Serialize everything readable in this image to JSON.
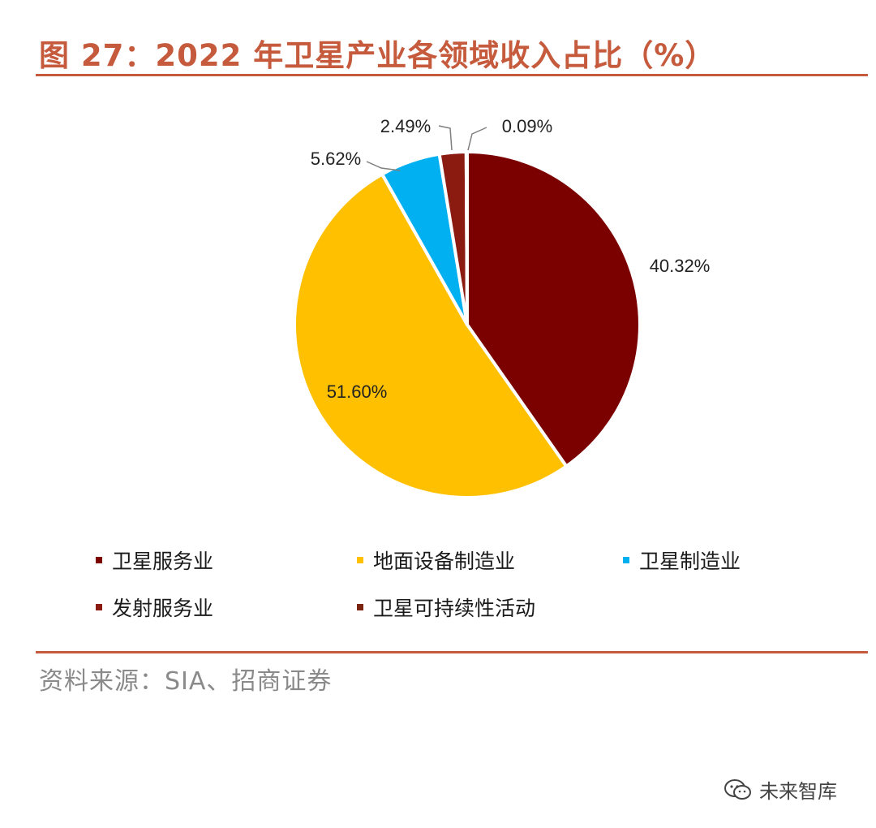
{
  "title": "图 27：2022 年卫星产业各领域收入占比（%）",
  "source": "资料来源：SIA、招商证券",
  "watermark": "未来智库",
  "chart_data": {
    "type": "pie",
    "title": "图 27：2022 年卫星产业各领域收入占比（%）",
    "start": "12 o'clock, clockwise",
    "slices": [
      {
        "name": "卫星服务业",
        "value": 40.32,
        "label": "40.32%",
        "color": "#7b0000"
      },
      {
        "name": "地面设备制造业",
        "value": 51.6,
        "label": "51.60%",
        "color": "#ffc000"
      },
      {
        "name": "卫星制造业",
        "value": 5.62,
        "label": "5.62%",
        "color": "#00b0f0"
      },
      {
        "name": "发射服务业",
        "value": 2.49,
        "label": "2.49%",
        "color": "#8b1a10"
      },
      {
        "name": "卫星可持续性活动",
        "value": 0.09,
        "label": "0.09%",
        "color": "#7b2410"
      }
    ],
    "legend_position": "bottom"
  }
}
